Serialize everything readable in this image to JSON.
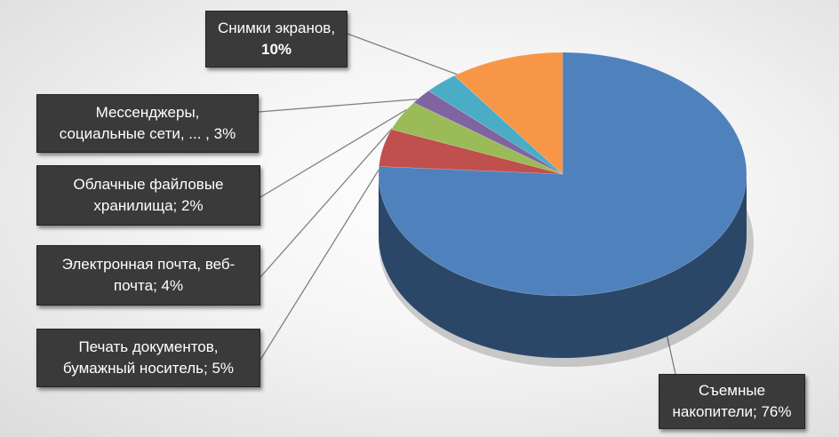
{
  "chart_data": {
    "type": "pie",
    "title": "",
    "style": "3d",
    "categories": [
      "Съемные накопители",
      "Печать документов, бумажный носитель",
      "Электронная почта, веб-почта",
      "Облачные файловые хранилища",
      "Мессенджеры, социальные сети, ...",
      "Снимки экранов"
    ],
    "values": [
      76,
      5,
      4,
      2,
      3,
      10
    ],
    "colors": [
      "#4f81bd",
      "#c0504d",
      "#9bbb59",
      "#8064a2",
      "#4bacc6",
      "#f79646"
    ],
    "labels": [
      {
        "line1": "Съемные",
        "line2": "накопители; 76%"
      },
      {
        "line1": "Печать документов,",
        "line2": "бумажный носитель; 5%"
      },
      {
        "line1": "Электронная почта, веб-",
        "line2": "почта; 4%"
      },
      {
        "line1": "Облачные файловые",
        "line2": "хранилища; 2%"
      },
      {
        "line1": "Мессенджеры,",
        "line2": "социальные сети, ... , 3%"
      },
      {
        "line1": "Снимки экранов,",
        "line2": "10%"
      }
    ]
  }
}
